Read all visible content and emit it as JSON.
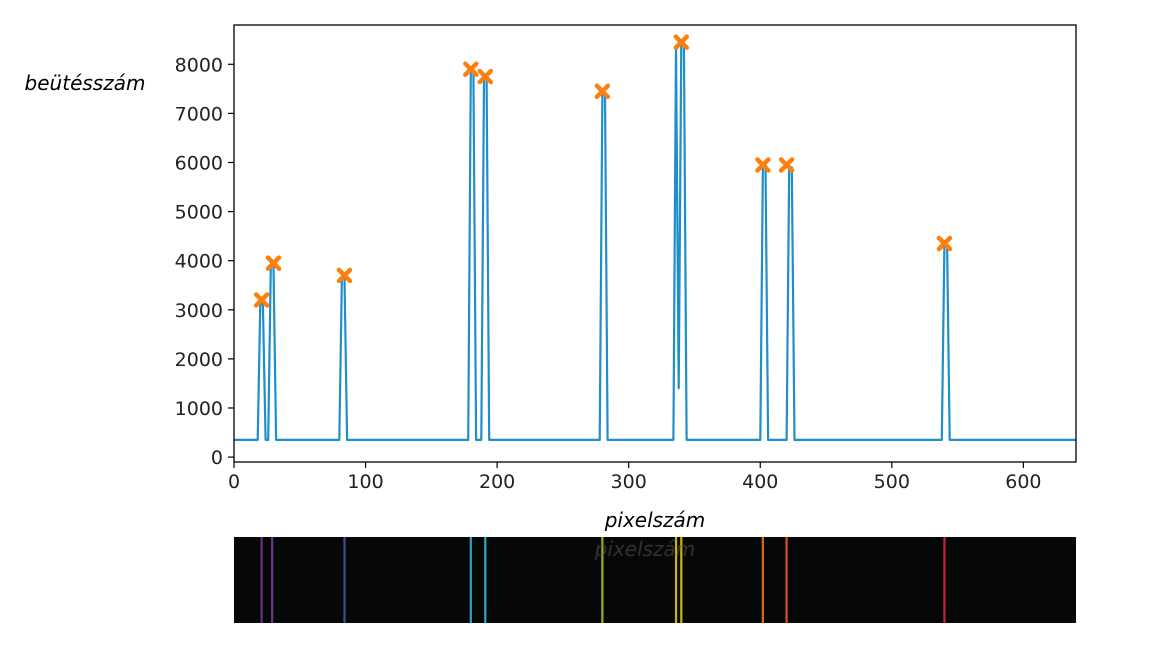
{
  "chart_data": {
    "type": "line",
    "xlabel": "pixelszám",
    "ylabel": "beütésszám",
    "xlim": [
      0,
      640
    ],
    "ylim": [
      -100,
      8800
    ],
    "x_ticks": [
      0,
      100,
      200,
      300,
      400,
      500,
      600
    ],
    "y_ticks": [
      0,
      1000,
      2000,
      3000,
      4000,
      5000,
      6000,
      7000,
      8000
    ],
    "grid": false,
    "baseline": 350,
    "line_color": "#1f8ec9",
    "marker_color": "#ff7f0e",
    "series": [
      {
        "x": [
          0,
          18,
          20,
          22,
          24,
          26,
          28,
          30,
          32,
          80,
          82,
          84,
          86,
          176,
          178,
          180,
          182,
          184,
          188,
          190,
          192,
          194,
          276,
          278,
          280,
          282,
          284,
          332,
          334,
          336,
          338,
          340,
          342,
          344,
          398,
          400,
          402,
          404,
          406,
          418,
          420,
          422,
          424,
          426,
          536,
          538,
          540,
          542,
          544,
          640
        ],
        "y": [
          350,
          350,
          3150,
          3100,
          350,
          350,
          3900,
          3900,
          350,
          350,
          3650,
          3650,
          350,
          350,
          350,
          7850,
          7850,
          350,
          350,
          7700,
          7700,
          350,
          350,
          350,
          7400,
          7400,
          350,
          350,
          350,
          8350,
          1400,
          8450,
          8450,
          350,
          350,
          350,
          5950,
          5950,
          350,
          350,
          350,
          5900,
          5900,
          350,
          350,
          350,
          4300,
          4300,
          350,
          350
        ]
      }
    ],
    "peaks": [
      {
        "x": 21,
        "y": 3200
      },
      {
        "x": 30,
        "y": 3950
      },
      {
        "x": 84,
        "y": 3700
      },
      {
        "x": 180,
        "y": 7900
      },
      {
        "x": 191,
        "y": 7750
      },
      {
        "x": 280,
        "y": 7450
      },
      {
        "x": 340,
        "y": 8450
      },
      {
        "x": 402,
        "y": 5950
      },
      {
        "x": 420,
        "y": 5950
      },
      {
        "x": 540,
        "y": 4350
      }
    ],
    "spectrum_lines": [
      {
        "x": 21,
        "color": "#6a2f7e"
      },
      {
        "x": 29,
        "color": "#6a3a8e"
      },
      {
        "x": 84,
        "color": "#3e4d8a"
      },
      {
        "x": 180,
        "color": "#3a9fbf"
      },
      {
        "x": 191,
        "color": "#3aa5bd"
      },
      {
        "x": 280,
        "color": "#a8ac1c"
      },
      {
        "x": 336,
        "color": "#c9b414"
      },
      {
        "x": 340,
        "color": "#c9b414"
      },
      {
        "x": 402,
        "color": "#d96a1e"
      },
      {
        "x": 420,
        "color": "#d9551e"
      },
      {
        "x": 540,
        "color": "#c8242e"
      }
    ]
  }
}
